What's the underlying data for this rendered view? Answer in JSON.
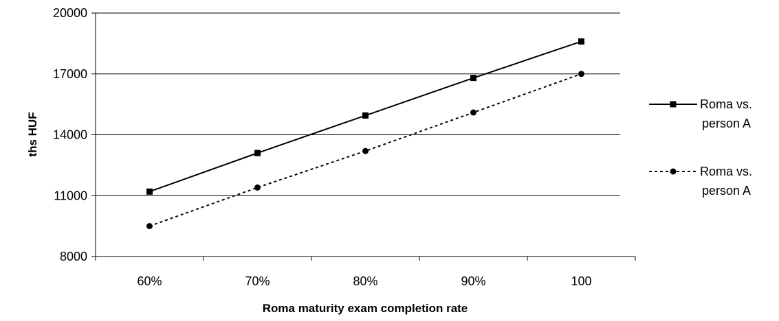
{
  "chart_data": {
    "type": "line",
    "categories": [
      "60%",
      "70%",
      "80%",
      "90%",
      "100"
    ],
    "series": [
      {
        "name": "Roma vs. person A",
        "values": [
          11200,
          13100,
          14950,
          16800,
          18600
        ],
        "line_style": "solid",
        "marker": "square",
        "color": "#000000"
      },
      {
        "name": "Roma vs. person A",
        "values": [
          9500,
          11400,
          13200,
          15100,
          17000
        ],
        "line_style": "dotted",
        "marker": "circle",
        "color": "#000000"
      }
    ],
    "xlabel": "Roma maturity exam completion rate",
    "ylabel": "ths HUF",
    "ylim": [
      8000,
      20000
    ],
    "yticks": [
      "8000",
      "11000",
      "14000",
      "17000",
      "20000"
    ],
    "grid": "horizontal",
    "legend_position": "right"
  }
}
